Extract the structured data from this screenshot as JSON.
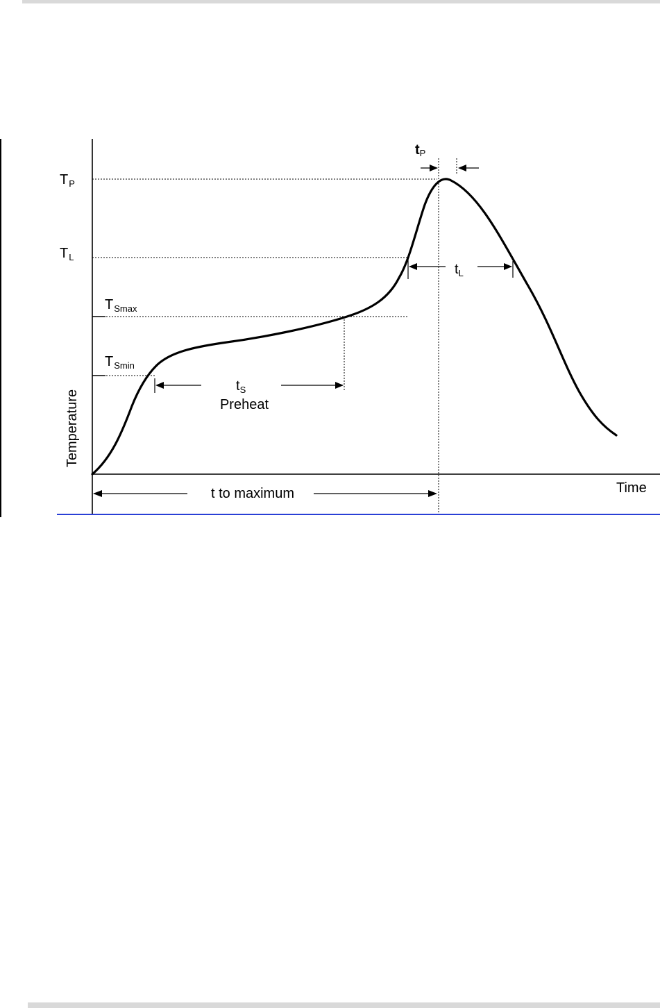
{
  "diagram": {
    "axes": {
      "y_label": "Temperature",
      "x_label": "Time"
    },
    "levels": {
      "tp": {
        "main": "T",
        "sub": "P"
      },
      "tl": {
        "main": "T",
        "sub": "L"
      },
      "tsmax": {
        "main": "T",
        "sub": "Smax"
      },
      "tsmin": {
        "main": "T",
        "sub": "Smin"
      }
    },
    "durations": {
      "tp": {
        "main": "t",
        "sub": "P"
      },
      "tl": {
        "main": "t",
        "sub": "L"
      },
      "ts": {
        "main": "t",
        "sub": "S"
      },
      "preheat": "Preheat",
      "t_to_max": "t to maximum"
    }
  }
}
